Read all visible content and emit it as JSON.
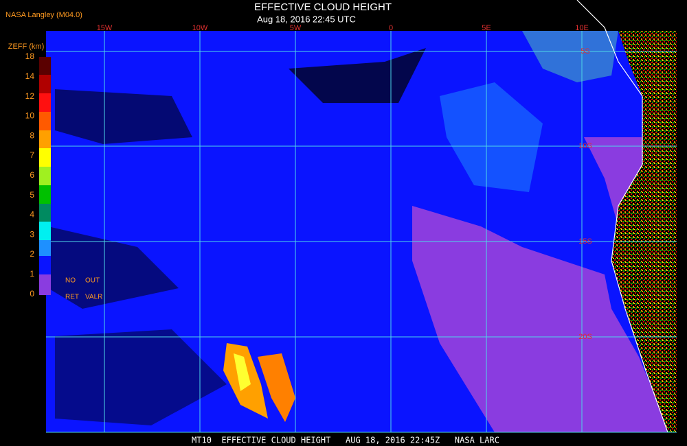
{
  "header": {
    "source": "NASA Langley (M04.0)",
    "title": "EFFECTIVE CLOUD HEIGHT",
    "datetime": "Aug 18, 2016 22:45 UTC"
  },
  "map": {
    "longitude_labels": [
      "15W",
      "10W",
      "5W",
      "0",
      "5E",
      "10E"
    ],
    "latitude_labels": [
      "5S",
      "10S",
      "15S",
      "20S"
    ]
  },
  "colorbar": {
    "title": "ZEFF (km)",
    "tick_labels": [
      18,
      14,
      12,
      10,
      8,
      7,
      6,
      5,
      4,
      3,
      2,
      1,
      0
    ],
    "no_retrieval": [
      "NO",
      "RET"
    ],
    "out_of_range": [
      "OUT",
      "VALR"
    ]
  },
  "footer": "MT10  EFFECTIVE CLOUD HEIGHT   AUG 18, 2016 22:45Z   NASA LARC"
}
